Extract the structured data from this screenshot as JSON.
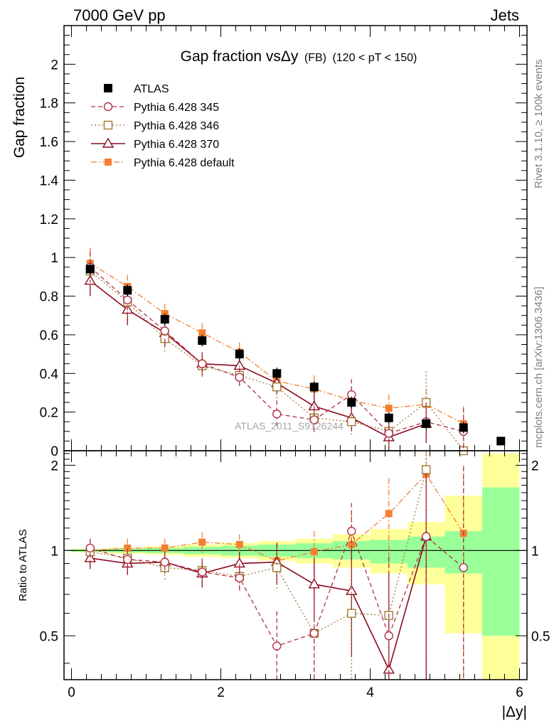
{
  "header": {
    "left": "7000 GeV pp",
    "right": "Jets"
  },
  "side_labels": {
    "top": "Rivet 3.1.10, ≥ 100k events",
    "bottom": "mcplots.cern.ch [arXiv:1306.3436]"
  },
  "watermark": "ATLAS_2011_S9126244",
  "colors": {
    "atlas": "#000000",
    "p345": "#b03048",
    "p346": "#a07a30",
    "p370": "#8b0a20",
    "pdef": "#f47f30",
    "band_inner": "#99ff99",
    "band_outer": "#ffff99"
  },
  "chart_data": [
    {
      "type": "scatter",
      "name": "main",
      "title": "Gap fraction vsΔy",
      "title_suffix": "(FB)",
      "title_range": "(120 < pT < 150)",
      "ylabel": "Gap fraction",
      "xlim": [
        -0.1,
        6.1
      ],
      "ylim": [
        0,
        2.2
      ],
      "yticks": [
        "0",
        "0.2",
        "0.4",
        "0.6",
        "0.8",
        "1",
        "1.2",
        "1.4",
        "1.6",
        "1.8",
        "2"
      ],
      "legend_position": "top-left",
      "series": [
        {
          "name": "ATLAS",
          "key": "atlas",
          "marker": "filled-square",
          "x": [
            0.25,
            0.75,
            1.25,
            1.75,
            2.25,
            2.75,
            3.25,
            3.75,
            4.25,
            4.75,
            5.25,
            5.75
          ],
          "y": [
            0.94,
            0.83,
            0.68,
            0.57,
            0.5,
            0.4,
            0.33,
            0.25,
            0.17,
            0.14,
            0.12,
            0.05
          ],
          "err": [
            0.03,
            0.03,
            0.03,
            0.03,
            0.03,
            0.03,
            0.03,
            0.03,
            0.03,
            0.03,
            0.03,
            0.02
          ]
        },
        {
          "name": "Pythia 6.428 345",
          "key": "p345",
          "marker": "open-circle",
          "line": "dashed",
          "x": [
            0.25,
            0.75,
            1.25,
            1.75,
            2.25,
            2.75,
            3.25,
            3.75,
            4.25,
            4.75,
            5.25
          ],
          "y": [
            0.95,
            0.78,
            0.62,
            0.45,
            0.38,
            0.19,
            0.16,
            0.29,
            0.09,
            0.15,
            0.1
          ],
          "err": [
            0.08,
            0.08,
            0.07,
            0.06,
            0.05,
            0.07,
            0.07,
            0.08,
            0.08,
            0.1,
            0.12
          ]
        },
        {
          "name": "Pythia 6.428 346",
          "key": "p346",
          "marker": "open-square",
          "line": "dotted",
          "x": [
            0.25,
            0.75,
            1.25,
            1.75,
            2.25,
            2.75,
            3.25,
            3.75,
            4.25,
            4.75,
            5.25
          ],
          "y": [
            0.93,
            0.77,
            0.58,
            0.44,
            0.39,
            0.33,
            0.17,
            0.15,
            0.1,
            0.25,
            0.0
          ],
          "err": [
            0.08,
            0.08,
            0.07,
            0.06,
            0.05,
            0.06,
            0.07,
            0.07,
            0.08,
            0.16,
            0.1
          ]
        },
        {
          "name": "Pythia 6.428 370",
          "key": "p370",
          "marker": "open-triangle",
          "line": "solid",
          "x": [
            0.25,
            0.75,
            1.25,
            1.75,
            2.25,
            2.75,
            3.25,
            3.75,
            4.25,
            4.75
          ],
          "y": [
            0.88,
            0.73,
            0.61,
            0.45,
            0.44,
            0.35,
            0.23,
            0.17,
            0.07,
            0.14
          ],
          "err": [
            0.08,
            0.08,
            0.07,
            0.06,
            0.05,
            0.06,
            0.07,
            0.07,
            0.07,
            0.1
          ]
        },
        {
          "name": "Pythia 6.428 default",
          "key": "pdef",
          "marker": "filled-square-small",
          "line": "dashdot",
          "x": [
            0.25,
            0.75,
            1.25,
            1.75,
            2.25,
            2.75,
            3.25,
            3.75,
            4.25,
            4.75,
            5.25
          ],
          "y": [
            0.97,
            0.85,
            0.71,
            0.61,
            0.51,
            0.36,
            0.32,
            0.26,
            0.22,
            0.24,
            0.14
          ],
          "err": [
            0.08,
            0.06,
            0.05,
            0.05,
            0.05,
            0.06,
            0.07,
            0.07,
            0.07,
            0.08,
            0.09
          ]
        }
      ]
    },
    {
      "type": "scatter",
      "name": "ratio",
      "ylabel": "Ratio to ATLAS",
      "xlabel": "|Δy|",
      "xlim": [
        -0.1,
        6.1
      ],
      "ylim": [
        0.35,
        2.25
      ],
      "xticks": [
        "0",
        "2",
        "4",
        "6"
      ],
      "yticks": [
        "0.5",
        "1",
        "2"
      ],
      "bands": [
        {
          "x0": 0.0,
          "x1": 0.5,
          "inner": [
            0.99,
            1.01
          ],
          "outer": [
            0.985,
            1.015
          ]
        },
        {
          "x0": 0.5,
          "x1": 1.0,
          "inner": [
            0.985,
            1.015
          ],
          "outer": [
            0.975,
            1.025
          ]
        },
        {
          "x0": 1.0,
          "x1": 1.5,
          "inner": [
            0.98,
            1.02
          ],
          "outer": [
            0.965,
            1.035
          ]
        },
        {
          "x0": 1.5,
          "x1": 2.0,
          "inner": [
            0.97,
            1.03
          ],
          "outer": [
            0.95,
            1.05
          ]
        },
        {
          "x0": 2.0,
          "x1": 2.5,
          "inner": [
            0.96,
            1.04
          ],
          "outer": [
            0.94,
            1.065
          ]
        },
        {
          "x0": 2.5,
          "x1": 3.0,
          "inner": [
            0.95,
            1.05
          ],
          "outer": [
            0.92,
            1.08
          ]
        },
        {
          "x0": 3.0,
          "x1": 3.5,
          "inner": [
            0.94,
            1.06
          ],
          "outer": [
            0.9,
            1.1
          ]
        },
        {
          "x0": 3.5,
          "x1": 4.0,
          "inner": [
            0.93,
            1.08
          ],
          "outer": [
            0.87,
            1.14
          ]
        },
        {
          "x0": 4.0,
          "x1": 4.5,
          "inner": [
            0.9,
            1.09
          ],
          "outer": [
            0.83,
            1.19
          ]
        },
        {
          "x0": 4.5,
          "x1": 5.0,
          "inner": [
            0.87,
            1.12
          ],
          "outer": [
            0.76,
            1.26
          ]
        },
        {
          "x0": 5.0,
          "x1": 5.5,
          "inner": [
            0.83,
            1.17
          ],
          "outer": [
            0.51,
            1.56
          ]
        },
        {
          "x0": 5.5,
          "x1": 6.0,
          "inner": [
            0.5,
            1.67
          ],
          "outer": [
            0.3,
            2.2
          ]
        }
      ],
      "series": [
        {
          "key": "p345",
          "x": [
            0.25,
            0.75,
            1.25,
            1.75,
            2.25,
            2.75,
            3.25,
            3.75,
            4.25,
            4.75,
            5.25
          ],
          "y": [
            1.02,
            0.93,
            0.91,
            0.84,
            0.8,
            0.46,
            0.51,
            1.17,
            0.5,
            1.12,
            0.87
          ],
          "err": [
            0.08,
            0.08,
            0.08,
            0.09,
            0.09,
            0.15,
            0.18,
            0.3,
            0.45,
            0.7,
            1.1
          ]
        },
        {
          "key": "p346",
          "x": [
            0.25,
            0.75,
            1.25,
            1.75,
            2.25,
            2.75,
            3.25,
            3.75,
            4.25,
            4.75
          ],
          "y": [
            0.99,
            0.94,
            0.87,
            0.85,
            0.81,
            0.87,
            0.51,
            0.6,
            0.59,
            1.93
          ],
          "err": [
            0.08,
            0.08,
            0.08,
            0.09,
            0.09,
            0.15,
            0.18,
            0.3,
            0.45,
            1.2
          ]
        },
        {
          "key": "p370",
          "x": [
            0.25,
            0.75,
            1.25,
            1.75,
            2.25,
            2.75,
            3.25,
            3.75,
            4.25,
            4.75
          ],
          "y": [
            0.94,
            0.9,
            0.91,
            0.83,
            0.9,
            0.91,
            0.76,
            0.72,
            0.38,
            1.12
          ],
          "err": [
            0.08,
            0.08,
            0.08,
            0.09,
            0.09,
            0.15,
            0.18,
            0.3,
            0.45,
            0.8
          ]
        },
        {
          "key": "pdef",
          "x": [
            0.25,
            0.75,
            1.25,
            1.75,
            2.25,
            2.75,
            3.25,
            3.75,
            4.25,
            4.75,
            5.25
          ],
          "y": [
            1.0,
            1.02,
            1.02,
            1.07,
            1.05,
            0.92,
            0.99,
            1.05,
            1.35,
            1.86,
            1.15
          ],
          "err": [
            0.08,
            0.08,
            0.08,
            0.09,
            0.09,
            0.15,
            0.18,
            0.3,
            0.45,
            1.1,
            0.85
          ]
        }
      ]
    }
  ]
}
